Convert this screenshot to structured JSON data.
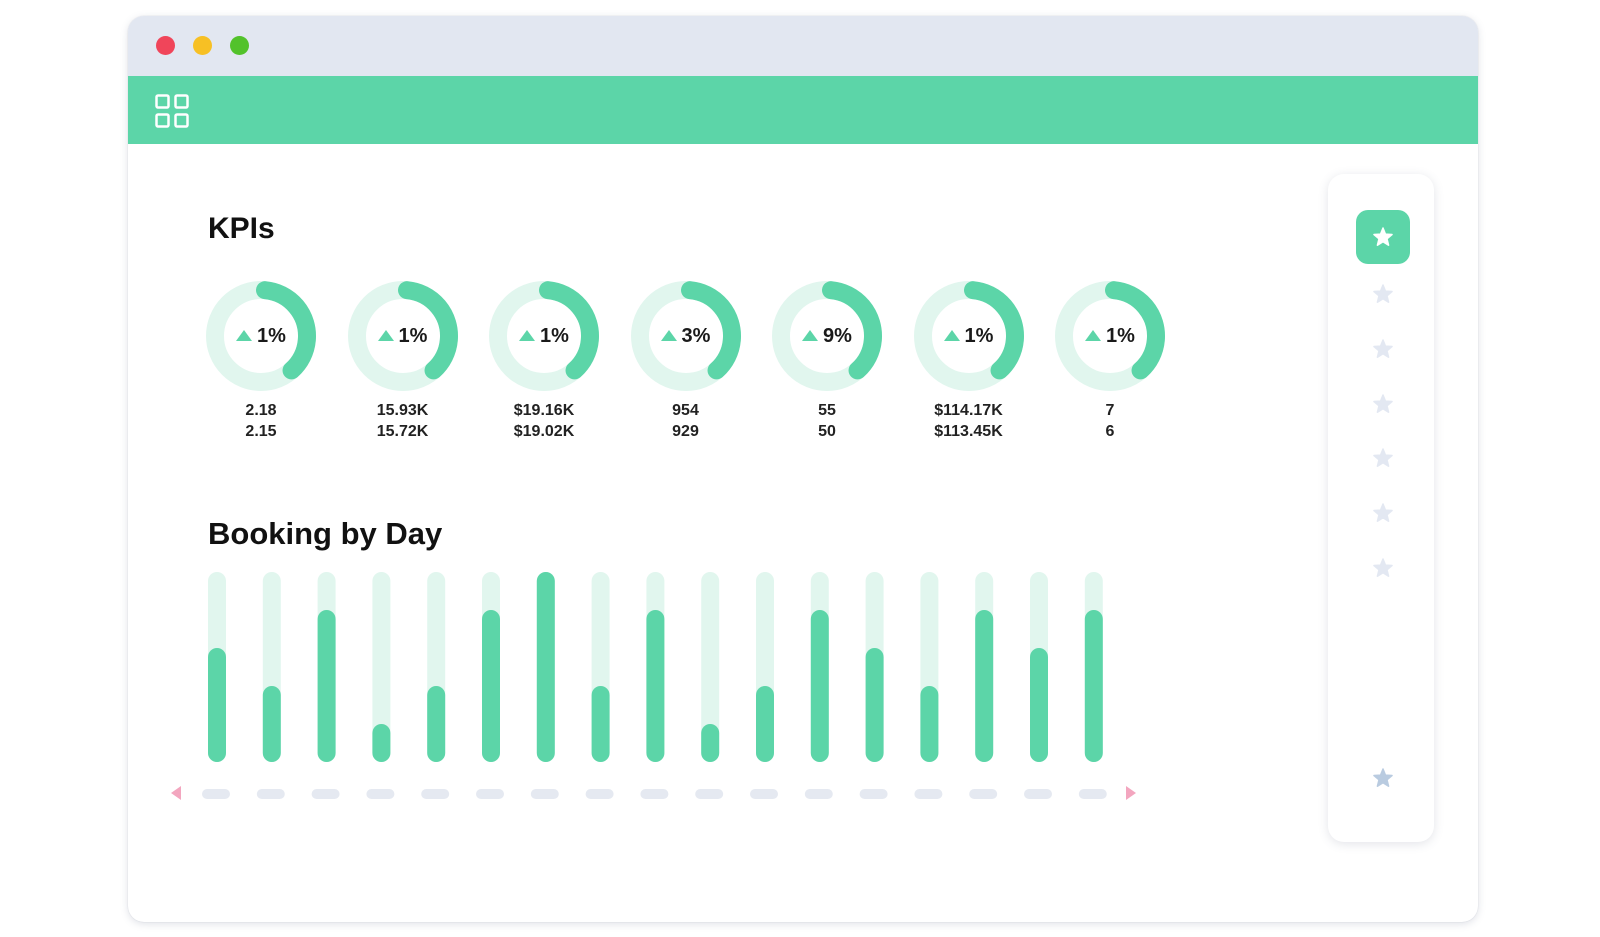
{
  "window": {
    "traffic_lights": [
      "close",
      "minimize",
      "maximize"
    ]
  },
  "appbar": {
    "menu_icon": "grid-icon"
  },
  "kpis": {
    "title": "KPIs",
    "items": [
      {
        "change": "1%",
        "current": "2.18",
        "previous": "2.15",
        "progress": 0.37
      },
      {
        "change": "1%",
        "current": "15.93K",
        "previous": "15.72K",
        "progress": 0.37
      },
      {
        "change": "1%",
        "current": "$19.16K",
        "previous": "$19.02K",
        "progress": 0.37
      },
      {
        "change": "3%",
        "current": "954",
        "previous": "929",
        "progress": 0.37
      },
      {
        "change": "9%",
        "current": "55",
        "previous": "50",
        "progress": 0.37
      },
      {
        "change": "1%",
        "current": "$114.17K",
        "previous": "$113.45K",
        "progress": 0.37
      },
      {
        "change": "1%",
        "current": "7",
        "previous": "6",
        "progress": 0.37
      }
    ],
    "colors": {
      "fill": "#5cd5a8",
      "track": "#e1f6ee"
    }
  },
  "booking": {
    "title": "Booking by Day",
    "chart_data": {
      "type": "bar",
      "categories": [
        "",
        "",
        "",
        "",
        "",
        "",
        "",
        "",
        "",
        "",
        "",
        "",
        "",
        "",
        "",
        "",
        ""
      ],
      "values": [
        3,
        2,
        4,
        1,
        2,
        4,
        5,
        2,
        4,
        1,
        2,
        4,
        3,
        2,
        4,
        3,
        4
      ],
      "ylim": [
        0,
        5
      ],
      "title": "",
      "xlabel": "",
      "ylabel": "",
      "grid": false
    },
    "colors": {
      "bar": "#5cd5a8",
      "track": "#e1f6ee",
      "tick": "#e5e9f1",
      "arrow": "#f3a6bf"
    }
  },
  "sidebar": {
    "items": [
      {
        "icon": "star-icon",
        "active": true
      },
      {
        "icon": "star-icon",
        "active": false
      },
      {
        "icon": "star-icon",
        "active": false
      },
      {
        "icon": "star-icon",
        "active": false
      },
      {
        "icon": "star-icon",
        "active": false
      },
      {
        "icon": "star-icon",
        "active": false
      },
      {
        "icon": "star-icon",
        "active": false
      }
    ],
    "footer_icon": "star-icon"
  }
}
